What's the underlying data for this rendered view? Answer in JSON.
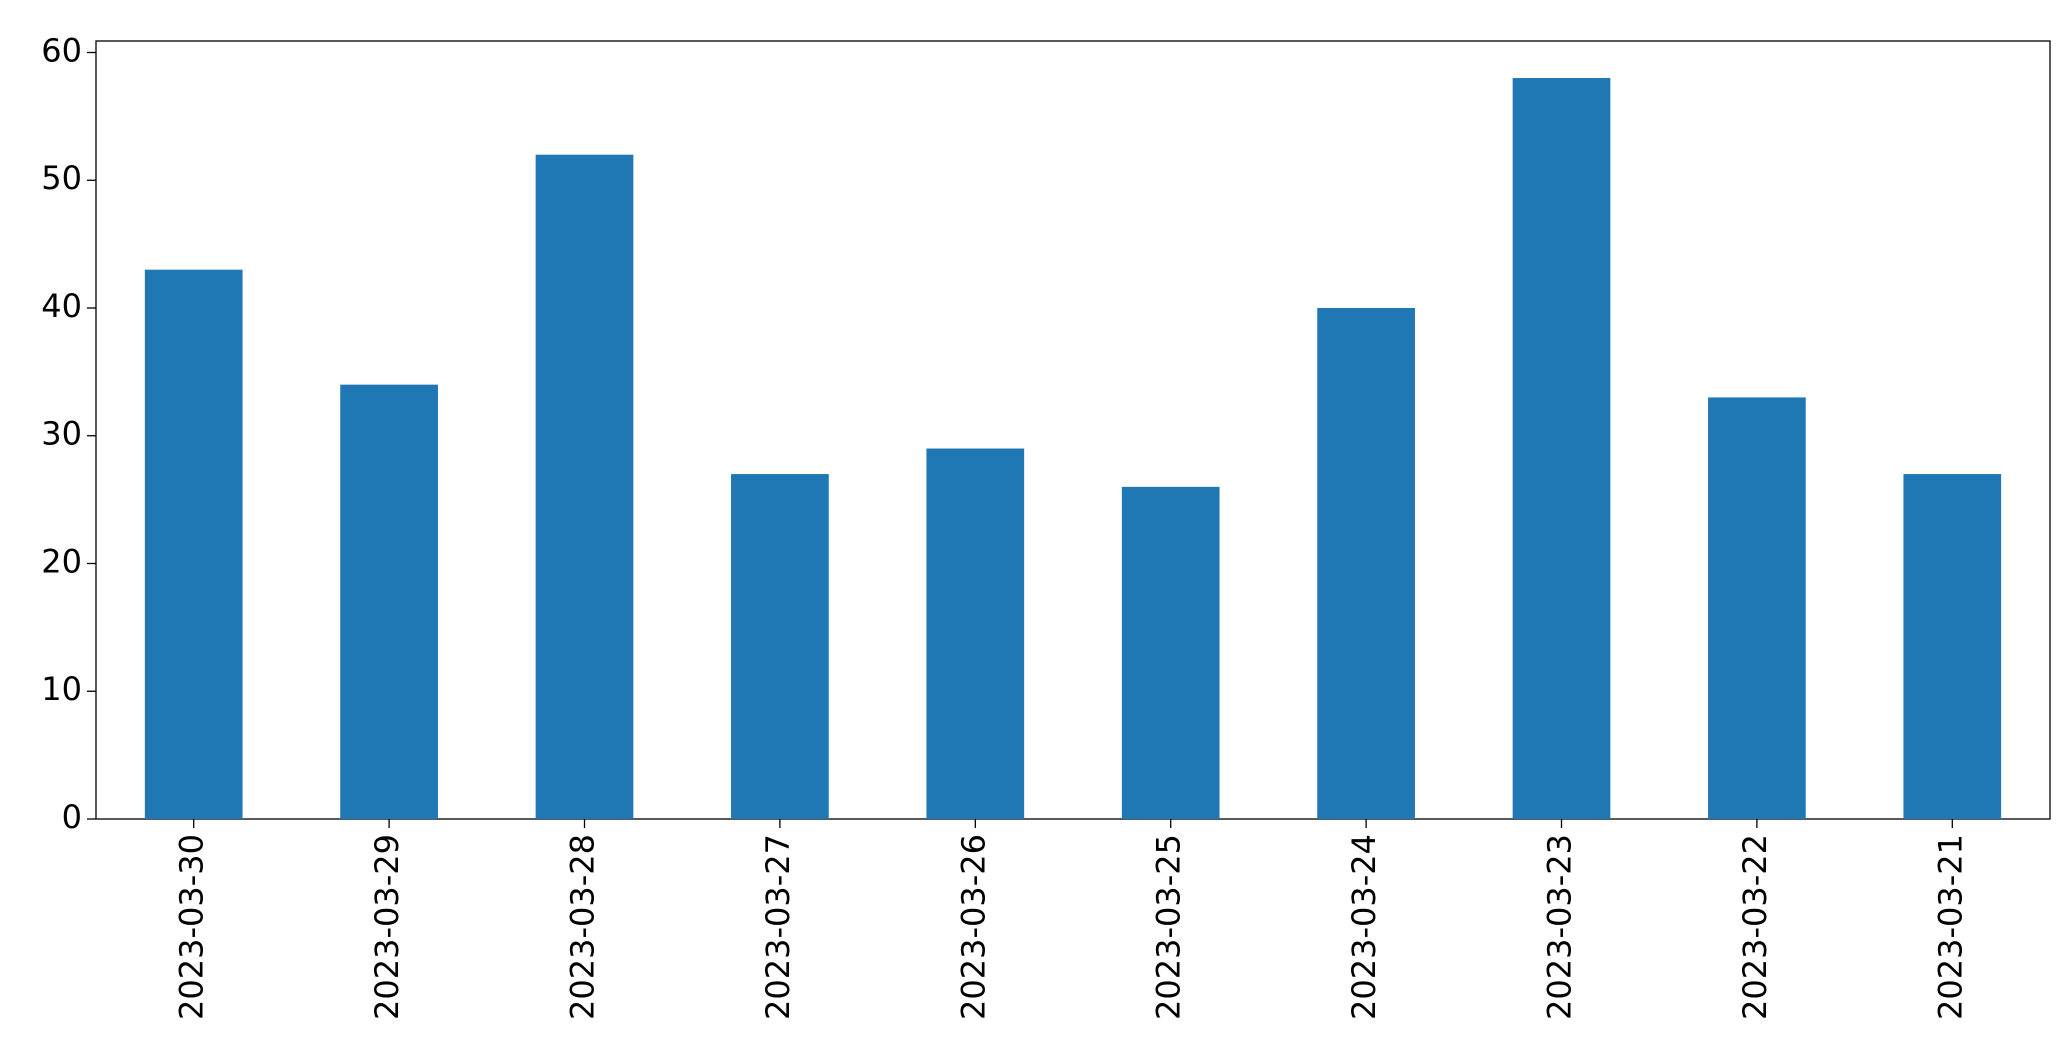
{
  "chart_data": {
    "type": "bar",
    "categories": [
      "2023-03-30",
      "2023-03-29",
      "2023-03-28",
      "2023-03-27",
      "2023-03-26",
      "2023-03-25",
      "2023-03-24",
      "2023-03-23",
      "2023-03-22",
      "2023-03-21"
    ],
    "values": [
      43,
      34,
      52,
      27,
      29,
      26,
      40,
      58,
      33,
      27
    ],
    "color": "#1f77b4",
    "ylim": [
      0,
      60.9
    ],
    "yticks": [
      0,
      10,
      20,
      30,
      40,
      50,
      60
    ],
    "grid": false
  }
}
